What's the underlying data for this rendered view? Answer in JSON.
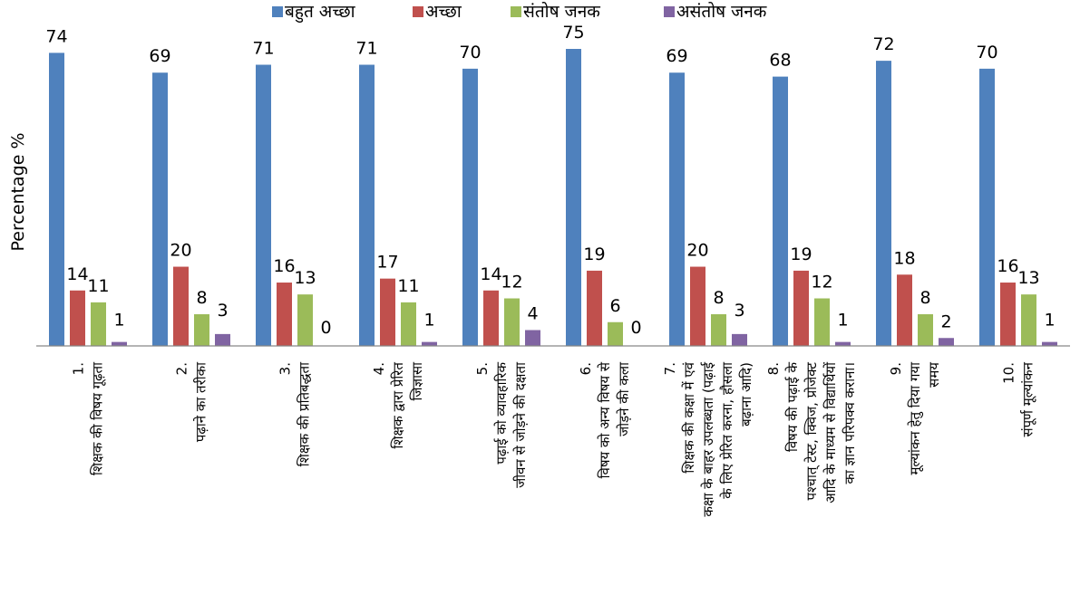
{
  "chart_data": {
    "type": "bar",
    "title": "",
    "xlabel": "",
    "ylabel": "Percentage %",
    "ylim": [
      0,
      75
    ],
    "grid": false,
    "legend_position": "top",
    "categories": [
      [
        "1.",
        "शिक्षक की विषय गूढ़ता"
      ],
      [
        "2.",
        "पढ़ाने का तरीका"
      ],
      [
        "3.",
        "शिक्षक की प्रतिबद्धता"
      ],
      [
        "4.",
        "शिक्षक द्वारा प्रेरित",
        "जिज्ञासा"
      ],
      [
        "5.",
        "पढ़ाई को व्यावहारिक",
        "जीवन से जोड़ने की दक्षता"
      ],
      [
        "6.",
        "विषय को अन्य विषय से",
        "जोड़ने की कला"
      ],
      [
        "7.",
        "शिक्षक की कक्षा में एवं",
        "कक्षा के बाहर उपलब्धता (पढ़ाई",
        "के लिए प्रेरित करना, हौसला",
        "बढ़ाना आदि)"
      ],
      [
        "8.",
        "विषय की पढ़ाई के",
        "पश्चात् टेस्ट, क्विज, प्रोजेक्ट",
        "आदि के माध्यम से विद्यार्थियों",
        "का ज्ञान परिपक्व कराना।"
      ],
      [
        "9.",
        "मूल्यांकन हेतु दिया गया",
        "समय"
      ],
      [
        "10.",
        "संपूर्ण मूल्यांकन"
      ]
    ],
    "series": [
      {
        "name": "बहुत अच्छा",
        "color": "#4F81BD",
        "values": [
          74,
          69,
          71,
          71,
          70,
          75,
          69,
          68,
          72,
          70
        ]
      },
      {
        "name": "अच्छा",
        "color": "#C0504D",
        "values": [
          14,
          20,
          16,
          17,
          14,
          19,
          20,
          19,
          18,
          16
        ]
      },
      {
        "name": "संतोष जनक",
        "color": "#9BBB59",
        "values": [
          11,
          8,
          13,
          11,
          12,
          6,
          8,
          12,
          8,
          13
        ]
      },
      {
        "name": "असंतोष जनक",
        "color": "#8064A2",
        "values": [
          1,
          3,
          0,
          1,
          4,
          0,
          3,
          1,
          2,
          1
        ]
      }
    ]
  }
}
